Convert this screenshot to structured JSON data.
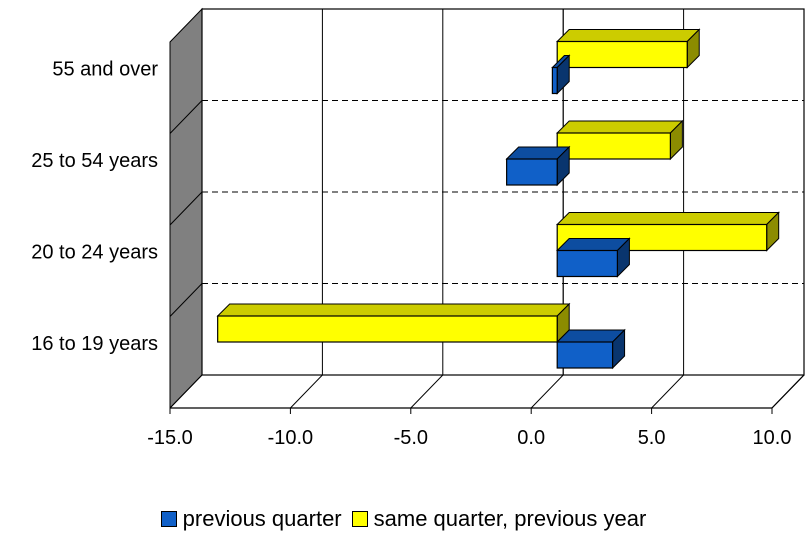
{
  "chart_data": {
    "type": "bar",
    "orientation": "horizontal",
    "categories": [
      "16 to 19 years",
      "20 to 24 years",
      "25 to 54 years",
      "55 and over"
    ],
    "series": [
      {
        "name": "previous quarter",
        "values": [
          2.3,
          2.5,
          -2.1,
          -0.2
        ],
        "color": "#1060C8"
      },
      {
        "name": "same quarter, previous year",
        "values": [
          -14.1,
          8.7,
          4.7,
          5.4
        ],
        "color": "#FFFF00"
      }
    ],
    "xlim": [
      -15,
      10
    ],
    "x_ticks": [
      "-15.0",
      "-10.0",
      "-5.0",
      "0.0",
      "5.0",
      "10.0"
    ],
    "grid": true,
    "style": "3d",
    "legend_position": "bottom",
    "title": "",
    "xlabel": "",
    "ylabel": ""
  }
}
